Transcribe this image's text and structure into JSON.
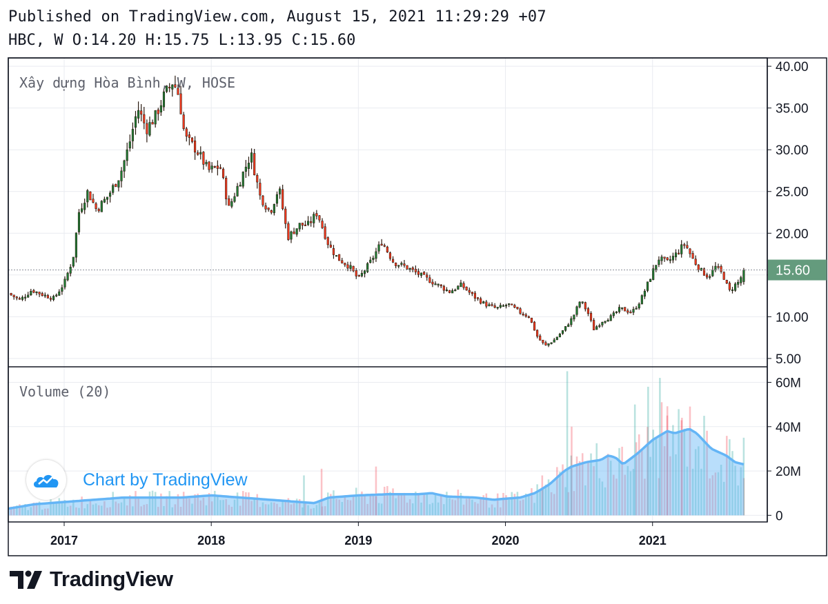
{
  "header": {
    "published": "Published on TradingView.com, August 15, 2021 11:29:29 +07",
    "ohlc": "HBC, W O:14.20 H:15.75 L:13.95 C:15.60"
  },
  "watermark": {
    "text": "Chart by TradingView",
    "icon": "tradingview-cloud-icon"
  },
  "footer": {
    "brand": "TradingView",
    "icon": "tradingview-logo-icon"
  },
  "colors": {
    "up": "#26a69a",
    "up_candle": "#1e7e34",
    "down": "#f23645",
    "down_candle": "#ff3b1f",
    "last_price_bg": "#649b7d",
    "volume_ma": "#64b5f6",
    "grid": "#e9ebf0",
    "frame": "#131722"
  },
  "chart_data": [
    {
      "type": "candlestick",
      "title": "Xây dựng Hòa Bình, W, HOSE",
      "symbol": "HBC",
      "interval": "W",
      "last_price": "15.60",
      "ylim": [
        4.0,
        41.0
      ],
      "y_ticks": [
        "5.00",
        "10.00",
        "15.00",
        "20.00",
        "25.00",
        "30.00",
        "35.00",
        "40.00"
      ],
      "x_ticks": [
        "2017",
        "2018",
        "2019",
        "2020",
        "2021"
      ],
      "x_tick_positions": [
        2017.0,
        2018.0,
        2019.0,
        2020.0,
        2021.0
      ],
      "x_range": [
        2016.62,
        2021.78
      ],
      "close_series": [
        [
          2016.62,
          12.8
        ],
        [
          2016.7,
          12.0
        ],
        [
          2016.78,
          13.2
        ],
        [
          2016.86,
          12.6
        ],
        [
          2016.93,
          12.2
        ],
        [
          2017.0,
          14.0
        ],
        [
          2017.06,
          17.0
        ],
        [
          2017.1,
          22.5
        ],
        [
          2017.16,
          25.0
        ],
        [
          2017.22,
          22.8
        ],
        [
          2017.3,
          24.5
        ],
        [
          2017.38,
          27.0
        ],
        [
          2017.44,
          30.5
        ],
        [
          2017.5,
          35.0
        ],
        [
          2017.56,
          32.5
        ],
        [
          2017.62,
          34.0
        ],
        [
          2017.68,
          36.5
        ],
        [
          2017.74,
          38.2
        ],
        [
          2017.78,
          36.5
        ],
        [
          2017.82,
          31.5
        ],
        [
          2017.9,
          30.0
        ],
        [
          2017.98,
          27.5
        ],
        [
          2018.06,
          28.0
        ],
        [
          2018.12,
          23.0
        ],
        [
          2018.2,
          26.5
        ],
        [
          2018.27,
          29.5
        ],
        [
          2018.33,
          24.5
        ],
        [
          2018.4,
          22.5
        ],
        [
          2018.46,
          25.5
        ],
        [
          2018.52,
          19.5
        ],
        [
          2018.6,
          21.0
        ],
        [
          2018.66,
          21.0
        ],
        [
          2018.72,
          22.5
        ],
        [
          2018.8,
          18.5
        ],
        [
          2018.86,
          17.0
        ],
        [
          2018.94,
          16.0
        ],
        [
          2019.0,
          14.5
        ],
        [
          2019.08,
          16.5
        ],
        [
          2019.16,
          19.0
        ],
        [
          2019.24,
          16.5
        ],
        [
          2019.32,
          16.0
        ],
        [
          2019.42,
          15.0
        ],
        [
          2019.52,
          14.0
        ],
        [
          2019.62,
          13.0
        ],
        [
          2019.7,
          13.8
        ],
        [
          2019.78,
          12.5
        ],
        [
          2019.86,
          11.5
        ],
        [
          2019.94,
          11.0
        ],
        [
          2020.02,
          11.5
        ],
        [
          2020.1,
          10.5
        ],
        [
          2020.16,
          10.0
        ],
        [
          2020.22,
          7.5
        ],
        [
          2020.27,
          6.5
        ],
        [
          2020.33,
          7.2
        ],
        [
          2020.4,
          8.5
        ],
        [
          2020.46,
          10.0
        ],
        [
          2020.51,
          12.0
        ],
        [
          2020.56,
          10.5
        ],
        [
          2020.6,
          8.5
        ],
        [
          2020.66,
          9.5
        ],
        [
          2020.72,
          10.0
        ],
        [
          2020.78,
          11.0
        ],
        [
          2020.86,
          10.5
        ],
        [
          2020.92,
          12.0
        ],
        [
          2020.98,
          14.5
        ],
        [
          2021.04,
          17.0
        ],
        [
          2021.1,
          16.5
        ],
        [
          2021.16,
          17.5
        ],
        [
          2021.22,
          18.8
        ],
        [
          2021.27,
          17.0
        ],
        [
          2021.33,
          15.5
        ],
        [
          2021.38,
          14.8
        ],
        [
          2021.43,
          16.0
        ],
        [
          2021.48,
          15.0
        ],
        [
          2021.52,
          13.0
        ],
        [
          2021.56,
          13.8
        ],
        [
          2021.59,
          14.2
        ],
        [
          2021.62,
          15.6
        ]
      ]
    },
    {
      "type": "bar",
      "title": "Volume (20)",
      "unit": "M",
      "ylim": [
        -3,
        67
      ],
      "y_ticks": [
        "0",
        "20M",
        "40M",
        "60M"
      ],
      "ma_series": [
        [
          2016.62,
          3
        ],
        [
          2016.8,
          5
        ],
        [
          2017.0,
          6
        ],
        [
          2017.2,
          7
        ],
        [
          2017.4,
          8
        ],
        [
          2017.6,
          8
        ],
        [
          2017.8,
          8
        ],
        [
          2018.0,
          9
        ],
        [
          2018.2,
          8
        ],
        [
          2018.4,
          7
        ],
        [
          2018.6,
          6
        ],
        [
          2018.7,
          5.5
        ],
        [
          2018.8,
          8
        ],
        [
          2019.0,
          9
        ],
        [
          2019.2,
          9.5
        ],
        [
          2019.4,
          9.5
        ],
        [
          2019.5,
          10
        ],
        [
          2019.6,
          8.5
        ],
        [
          2019.8,
          8
        ],
        [
          2019.92,
          7
        ],
        [
          2020.0,
          7.5
        ],
        [
          2020.1,
          8
        ],
        [
          2020.2,
          10
        ],
        [
          2020.3,
          14
        ],
        [
          2020.4,
          20
        ],
        [
          2020.45,
          22
        ],
        [
          2020.55,
          24
        ],
        [
          2020.65,
          25
        ],
        [
          2020.7,
          27
        ],
        [
          2020.75,
          26
        ],
        [
          2020.8,
          23
        ],
        [
          2020.9,
          28
        ],
        [
          2021.0,
          34
        ],
        [
          2021.1,
          38
        ],
        [
          2021.15,
          37
        ],
        [
          2021.2,
          38
        ],
        [
          2021.25,
          39
        ],
        [
          2021.3,
          37
        ],
        [
          2021.4,
          30
        ],
        [
          2021.5,
          27
        ],
        [
          2021.56,
          24
        ],
        [
          2021.62,
          23
        ]
      ],
      "spikes": [
        [
          2020.42,
          65,
          "up"
        ],
        [
          2020.45,
          40,
          "down"
        ],
        [
          2021.05,
          62,
          "up"
        ],
        [
          2020.88,
          50,
          "up"
        ],
        [
          2020.97,
          58,
          "up"
        ],
        [
          2021.1,
          45,
          "down"
        ],
        [
          2021.2,
          44,
          "down"
        ],
        [
          2021.62,
          35,
          "up"
        ],
        [
          2018.75,
          21,
          "down"
        ],
        [
          2019.12,
          22,
          "down"
        ],
        [
          2018.63,
          18,
          "up"
        ],
        [
          2020.25,
          18,
          "down"
        ]
      ]
    }
  ]
}
